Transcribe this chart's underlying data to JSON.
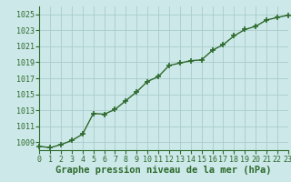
{
  "x": [
    0,
    1,
    2,
    3,
    4,
    5,
    6,
    7,
    8,
    9,
    10,
    11,
    12,
    13,
    14,
    15,
    16,
    17,
    18,
    19,
    20,
    21,
    22,
    23
  ],
  "y": [
    1008.5,
    1008.3,
    1008.7,
    1009.2,
    1010.0,
    1012.6,
    1012.5,
    1013.1,
    1014.2,
    1015.3,
    1016.6,
    1017.2,
    1018.6,
    1018.9,
    1019.2,
    1019.3,
    1020.5,
    1021.2,
    1022.3,
    1023.1,
    1023.5,
    1024.3,
    1024.6,
    1024.9
  ],
  "xlim": [
    0,
    23
  ],
  "ylim": [
    1008.0,
    1026.0
  ],
  "yticks": [
    1009,
    1011,
    1013,
    1015,
    1017,
    1019,
    1021,
    1023,
    1025
  ],
  "xticks": [
    0,
    1,
    2,
    3,
    4,
    5,
    6,
    7,
    8,
    9,
    10,
    11,
    12,
    13,
    14,
    15,
    16,
    17,
    18,
    19,
    20,
    21,
    22,
    23
  ],
  "xlabel": "Graphe pression niveau de la mer (hPa)",
  "line_color": "#2d6a2d",
  "marker_color": "#2d6a2d",
  "bg_color": "#cce8e8",
  "grid_color": "#aacccc",
  "tick_color": "#2d6a2d",
  "xlabel_color": "#2d6a2d",
  "xlabel_fontsize": 7.5,
  "tick_fontsize": 6.0,
  "line_width": 1.0,
  "marker_size": 4
}
